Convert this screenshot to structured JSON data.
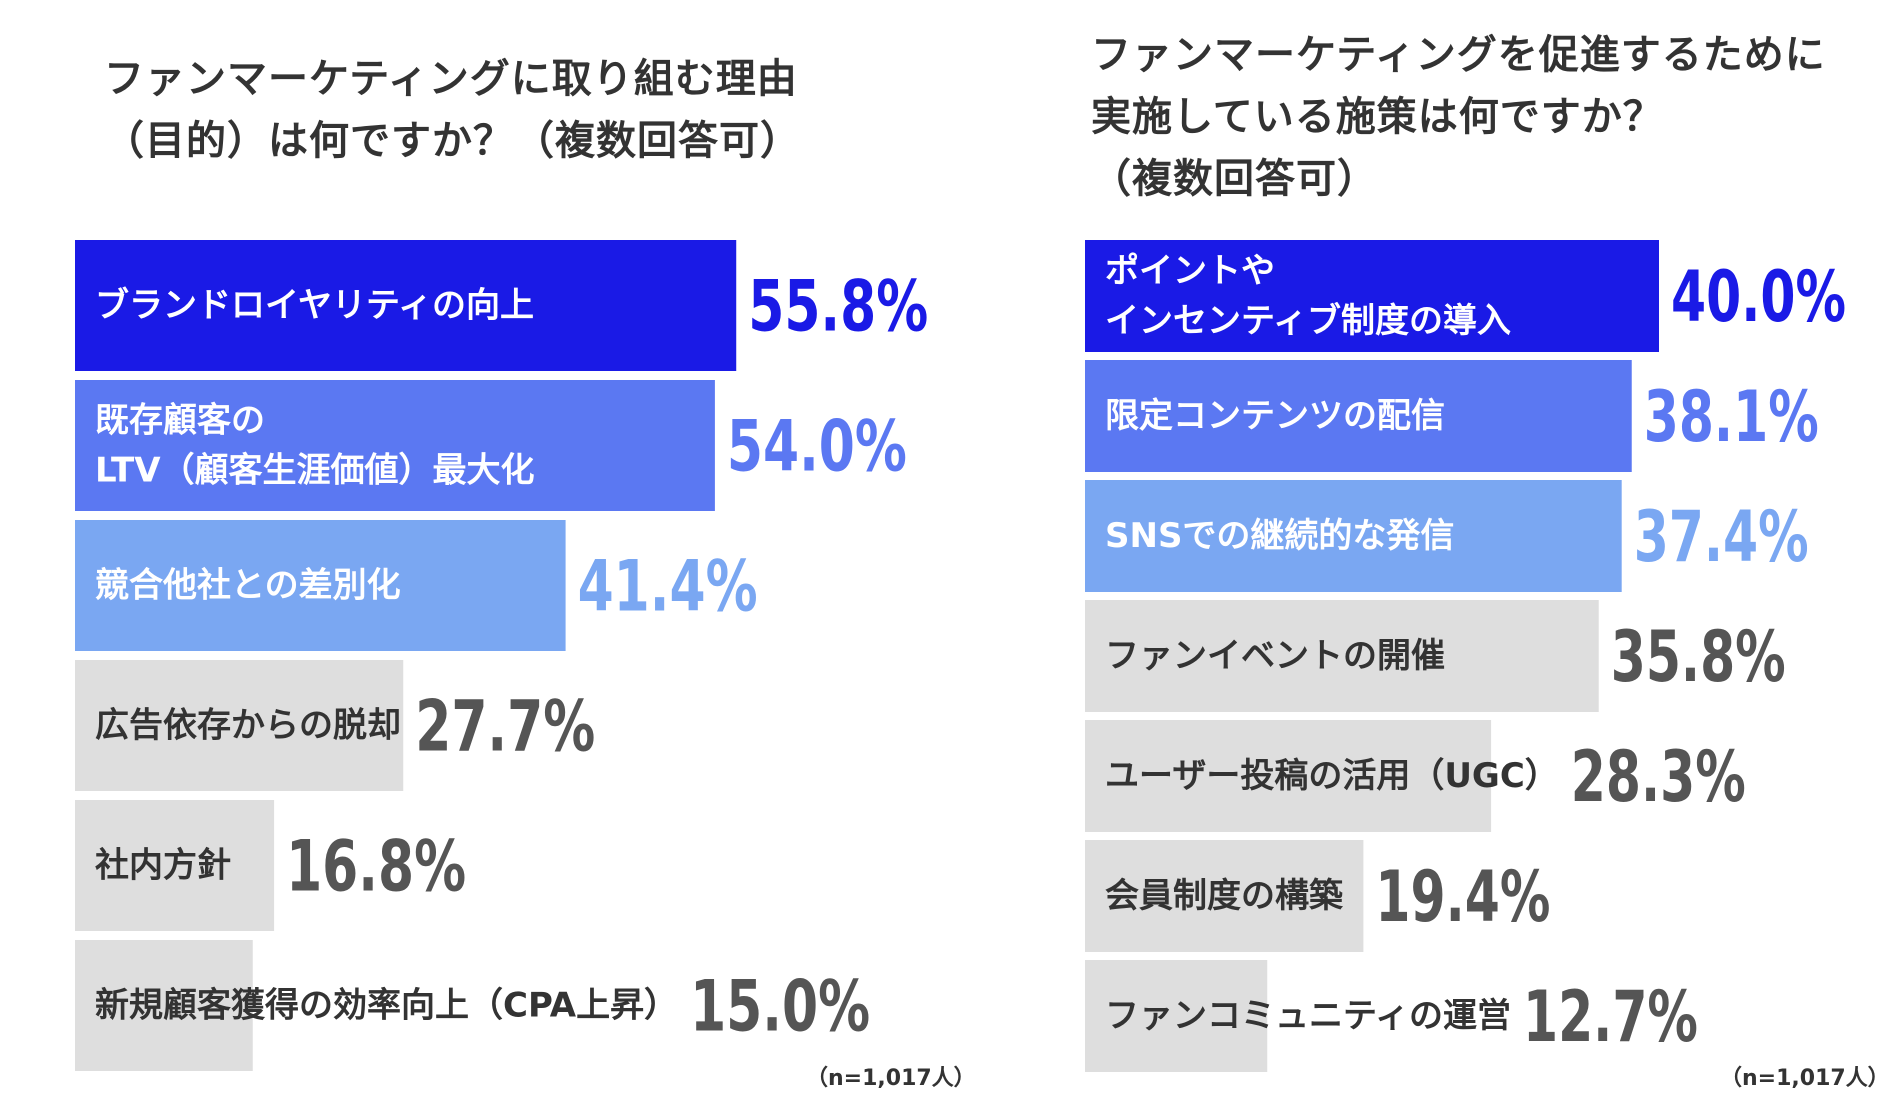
{
  "colors": {
    "rank1": "#1a1ae6",
    "rank2": "#5b78f2",
    "rank3": "#7aa7f2",
    "other": "#dedede",
    "label_light": "#ffffff",
    "label_dark": "#333333",
    "value_other": "#555555"
  },
  "chart_data": [
    {
      "type": "bar",
      "orientation": "horizontal",
      "title": "ファンマーケティングに取り組む理由\n（目的）は何ですか？（複数回答可）",
      "categories": [
        "ブランドロイヤリティの向上",
        "既存顧客の\nLTV（顧客生涯価値）最大化",
        "競合他社との差別化",
        "広告依存からの脱却",
        "社内方針",
        "新規顧客獲得の効率向上（CPA上昇）"
      ],
      "values": [
        55.8,
        54.0,
        41.4,
        27.7,
        16.8,
        15.0
      ],
      "value_labels": [
        "55.8%",
        "54.0%",
        "41.4%",
        "27.7%",
        "16.8%",
        "15.0%"
      ],
      "unit": "%",
      "note": "（n=1,017人）",
      "grid": false,
      "legend": "none"
    },
    {
      "type": "bar",
      "orientation": "horizontal",
      "title": "ファンマーケティングを促進するために\n実施している施策は何ですか？\n（複数回答可）",
      "categories": [
        "ポイントや\nインセンティブ制度の導入",
        "限定コンテンツの配信",
        "SNSでの継続的な発信",
        "ファンイベントの開催",
        "ユーザー投稿の活用（UGC）",
        "会員制度の構築",
        "ファンコミュニティの運営"
      ],
      "values": [
        40.0,
        38.1,
        37.4,
        35.8,
        28.3,
        19.4,
        12.7
      ],
      "value_labels": [
        "40.0%",
        "38.1%",
        "37.4%",
        "35.8%",
        "28.3%",
        "19.4%",
        "12.7%"
      ],
      "unit": "%",
      "note": "（n=1,017人）",
      "grid": false,
      "legend": "none"
    }
  ]
}
